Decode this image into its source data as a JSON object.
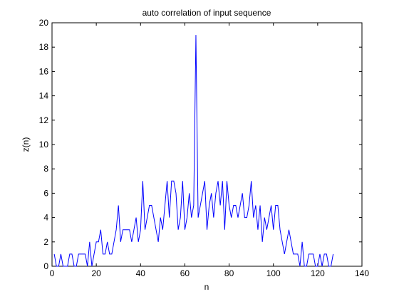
{
  "chart_data": {
    "type": "line",
    "title": "auto correlation of input sequence",
    "xlabel": "n",
    "ylabel": "z(n)",
    "xlim": [
      0,
      140
    ],
    "ylim": [
      0,
      20
    ],
    "xticks": [
      0,
      20,
      40,
      60,
      80,
      100,
      120,
      140
    ],
    "yticks": [
      0,
      2,
      4,
      6,
      8,
      10,
      12,
      14,
      16,
      18,
      20
    ],
    "grid": false,
    "legend": "none",
    "series": [
      {
        "color": "#0000ff",
        "x": [
          1,
          2,
          3,
          4,
          5,
          6,
          7,
          8,
          9,
          10,
          11,
          12,
          13,
          14,
          15,
          16,
          17,
          18,
          19,
          20,
          21,
          22,
          23,
          24,
          25,
          26,
          27,
          28,
          29,
          30,
          31,
          32,
          33,
          34,
          35,
          36,
          37,
          38,
          39,
          40,
          41,
          42,
          43,
          44,
          45,
          46,
          47,
          48,
          49,
          50,
          51,
          52,
          53,
          54,
          55,
          56,
          57,
          58,
          59,
          60,
          61,
          62,
          63,
          64,
          65,
          66,
          67,
          68,
          69,
          70,
          71,
          72,
          73,
          74,
          75,
          76,
          77,
          78,
          79,
          80,
          81,
          82,
          83,
          84,
          85,
          86,
          87,
          88,
          89,
          90,
          91,
          92,
          93,
          94,
          95,
          96,
          97,
          98,
          99,
          100,
          101,
          102,
          103,
          104,
          105,
          106,
          107,
          108,
          109,
          110,
          111,
          112,
          113,
          114,
          115,
          116,
          117,
          118,
          119,
          120,
          121,
          122,
          123,
          124,
          125,
          126,
          127
        ],
        "values": [
          1,
          0,
          0,
          1,
          0,
          0,
          0,
          1,
          1,
          0,
          0,
          1,
          1,
          1,
          1,
          0,
          2,
          0,
          1,
          2,
          2,
          3,
          1,
          1,
          2,
          1,
          1,
          2,
          3,
          5,
          2,
          3,
          3,
          3,
          3,
          2,
          3,
          4,
          2,
          3,
          7,
          3,
          4,
          5,
          5,
          4,
          3,
          2,
          4,
          3,
          5,
          7,
          4,
          7,
          7,
          6,
          3,
          4,
          7,
          3,
          4,
          6,
          4,
          5,
          19,
          4,
          5,
          6,
          7,
          3,
          5,
          6,
          4,
          6,
          7,
          5,
          7,
          3,
          7,
          5,
          4,
          5,
          5,
          4,
          5,
          6,
          4,
          4,
          5,
          7,
          4,
          5,
          3,
          5,
          2,
          4,
          3,
          4,
          5,
          3,
          5,
          5,
          3,
          2,
          1,
          2,
          3,
          2,
          1,
          1,
          1,
          0,
          2,
          0,
          0,
          1,
          1,
          1,
          0,
          0,
          1,
          0,
          1,
          1,
          0,
          0,
          1
        ]
      }
    ]
  }
}
